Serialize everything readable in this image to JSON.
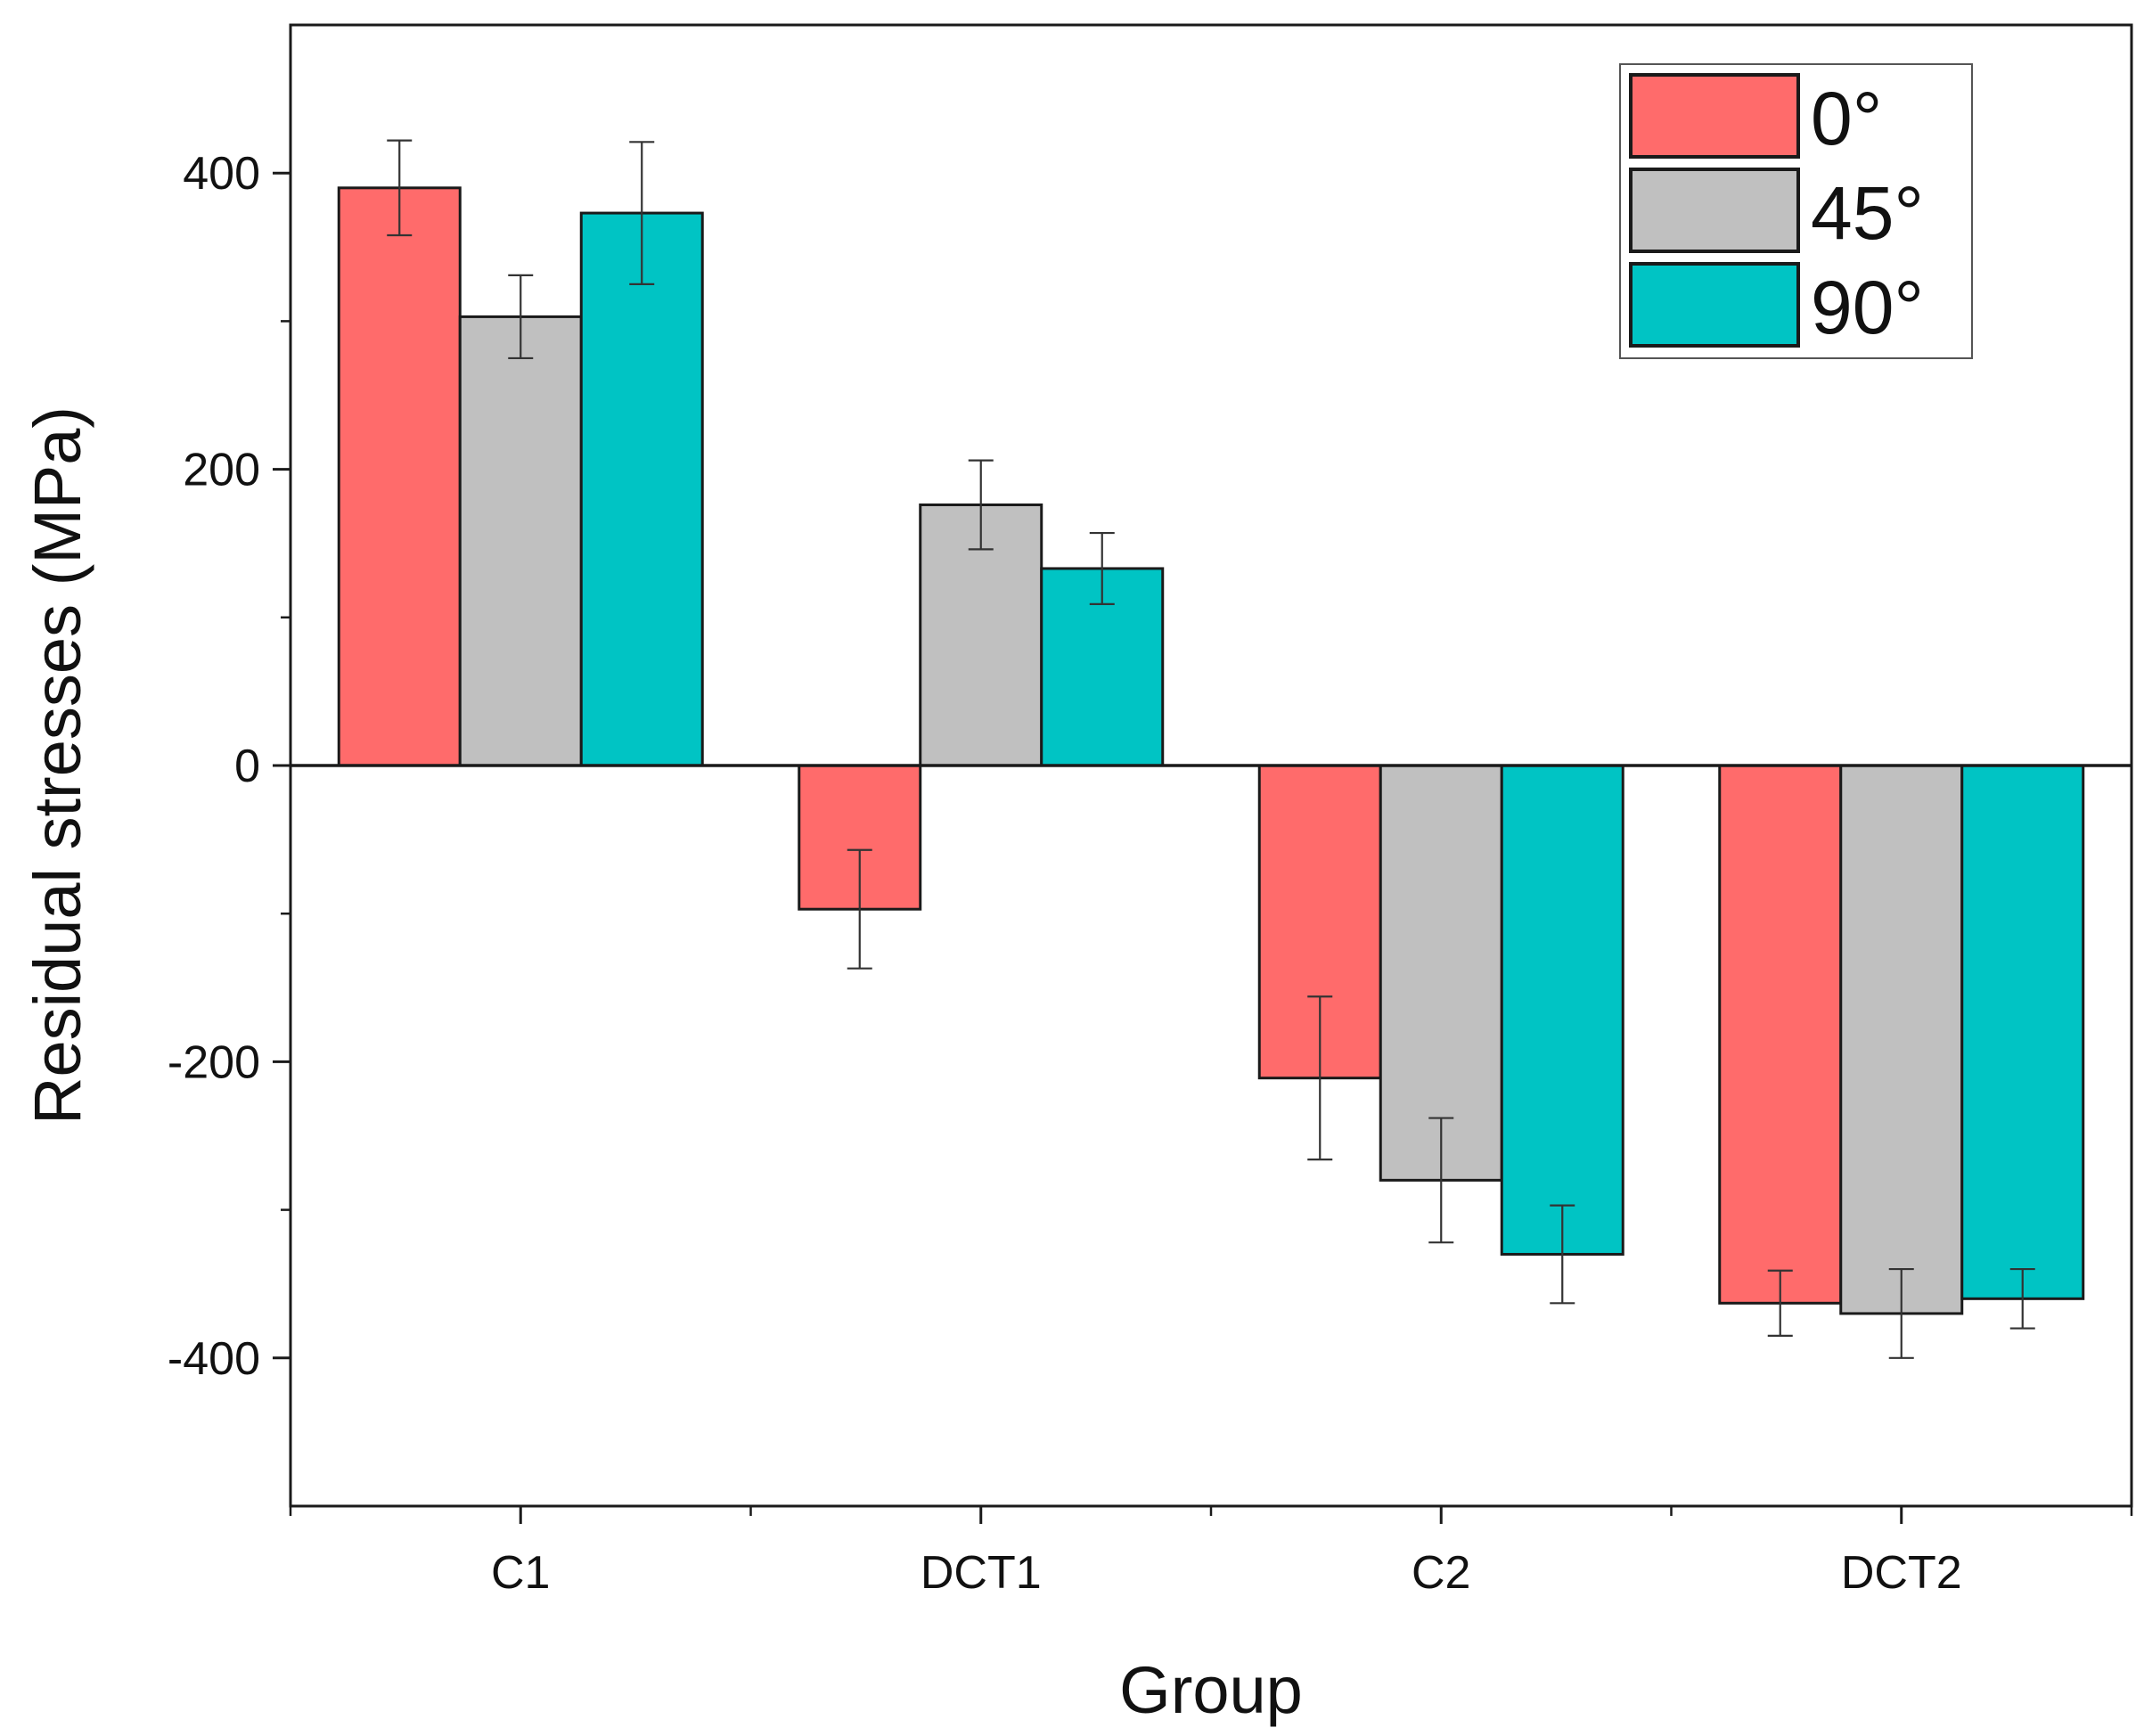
{
  "chart_data": {
    "type": "bar",
    "title": "",
    "xlabel": "Group",
    "ylabel": "Residual stresses (MPa)",
    "categories": [
      "C1",
      "DCT1",
      "C2",
      "DCT2"
    ],
    "ylim": [
      -500,
      500
    ],
    "yticks": [
      -400,
      -200,
      0,
      200,
      400
    ],
    "yticks_minor": [
      -300,
      -100,
      100,
      300
    ],
    "grid": false,
    "legend_position": "top-right",
    "error_bars": true,
    "series": [
      {
        "name": "0°",
        "color": "#ff6b6b",
        "values": [
          390,
          -97,
          -211,
          -363
        ],
        "errors": [
          32,
          40,
          55,
          22
        ]
      },
      {
        "name": "45°",
        "color": "#c0c0c0",
        "values": [
          303,
          176,
          -280,
          -370
        ],
        "errors": [
          28,
          30,
          42,
          30
        ]
      },
      {
        "name": "90°",
        "color": "#00c4c4",
        "values": [
          373,
          133,
          -330,
          -360
        ],
        "errors": [
          48,
          24,
          33,
          20
        ]
      }
    ]
  }
}
